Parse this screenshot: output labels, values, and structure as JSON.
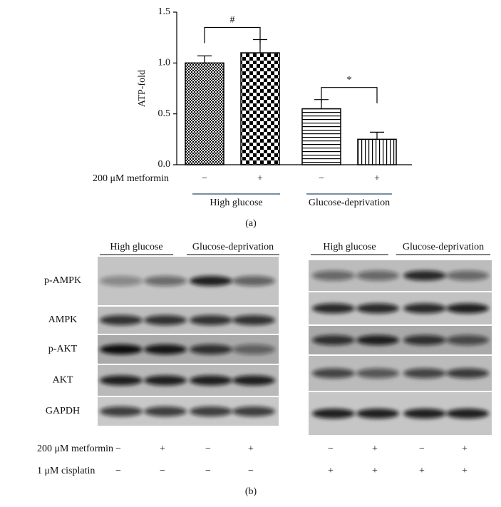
{
  "chart_data": {
    "type": "bar",
    "y_label": "ATP-fold",
    "categories": [
      "−",
      "+",
      "−",
      "+"
    ],
    "row_label": "200 μM metformin",
    "groups": [
      "High glucose",
      "Glucose-deprivation"
    ],
    "values": [
      1.0,
      1.1,
      0.55,
      0.25
    ],
    "errors": [
      0.07,
      0.13,
      0.09,
      0.07
    ],
    "color": "#000000",
    "ylim": [
      0,
      1.5
    ],
    "yticks": [
      {
        "value": 0,
        "label": "0.0"
      },
      0.5,
      {
        "value": 1,
        "label": "1.0"
      },
      {
        "value": 1.5,
        "label": "1.5"
      }
    ],
    "annotations": [
      "#",
      "*"
    ],
    "panel_label": "(a)"
  },
  "panel_b": {
    "left": {
      "headers": [
        "High glucose",
        "Glucose-deprivation"
      ],
      "row_labels": [
        "p-AMPK",
        "AMPK",
        "p-AKT",
        "AKT",
        "GAPDH"
      ]
    },
    "right": {
      "headers": [
        "High glucose",
        "Glucose-deprivation"
      ]
    },
    "conditions": [
      {
        "label": "200 μM metformin",
        "left": [
          "−",
          "+",
          "−",
          "+"
        ],
        "right": [
          "−",
          "+",
          "−",
          "+"
        ]
      },
      {
        "label": "1 μM cisplatin",
        "left": [
          "−",
          "−",
          "−",
          "−"
        ],
        "right": [
          "+",
          "+",
          "+",
          "+"
        ]
      }
    ],
    "panel_label": "(b)"
  }
}
